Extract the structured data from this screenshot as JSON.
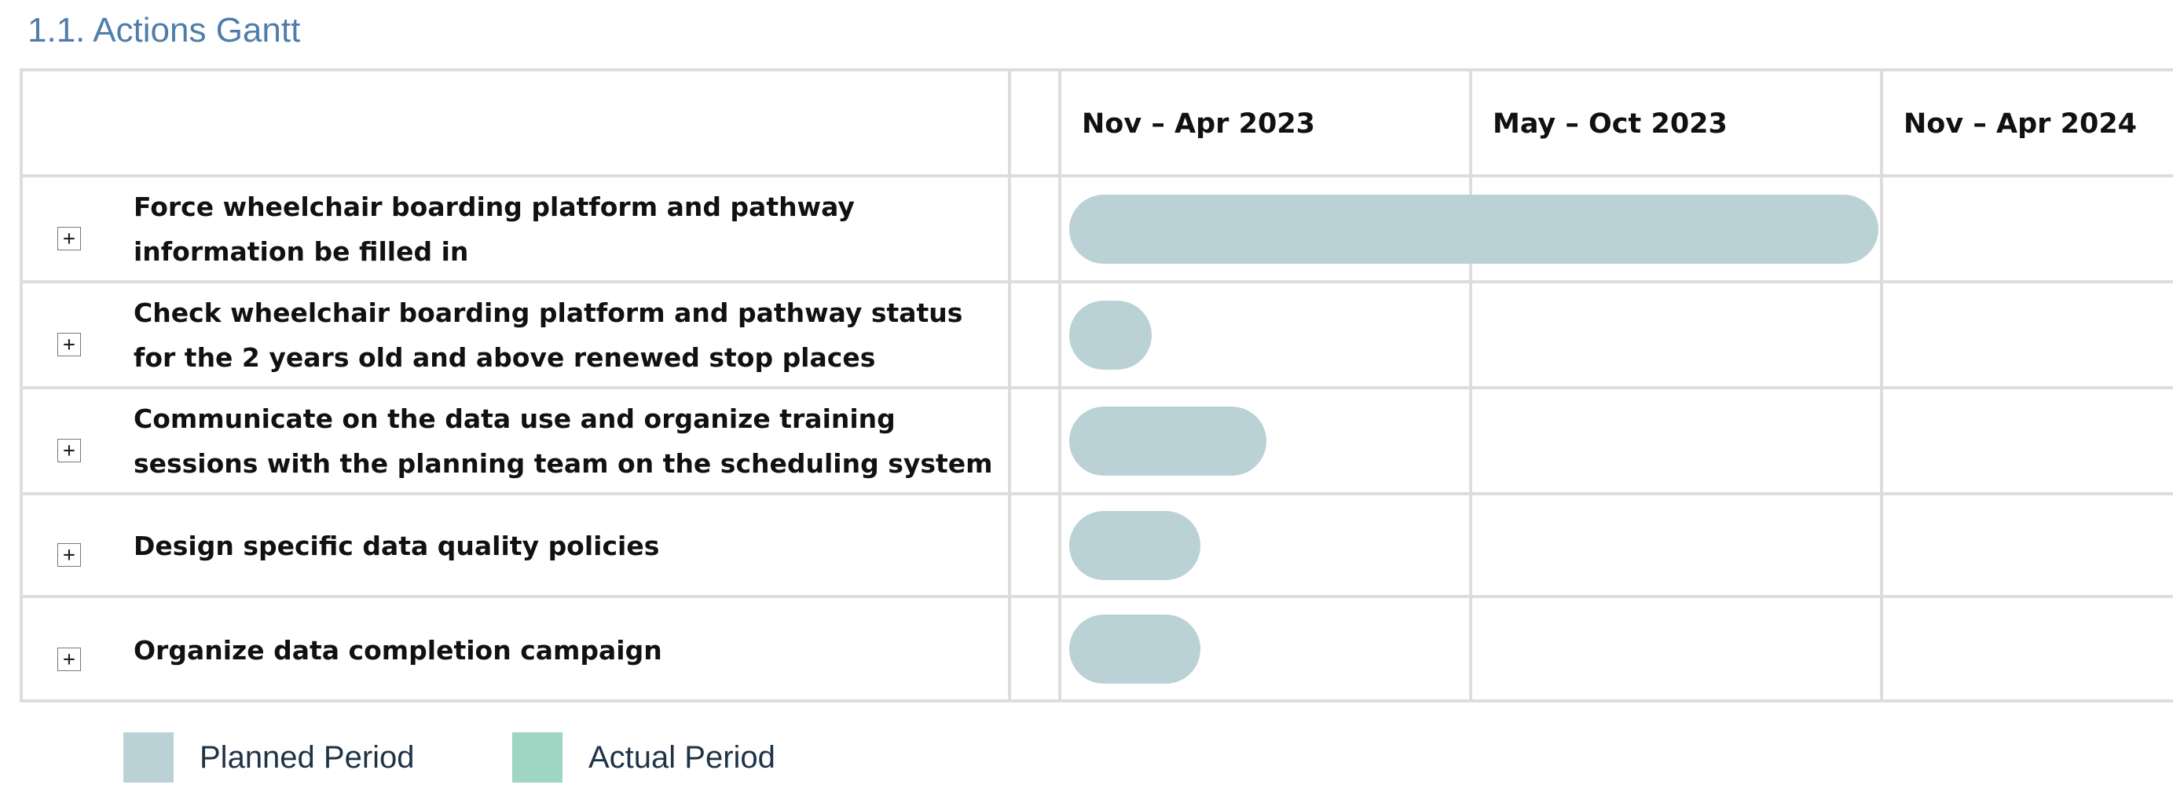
{
  "section_title": "1.1. Actions Gantt",
  "chart_data": {
    "type": "gantt",
    "periods": [
      "Nov – Apr 2023",
      "May – Oct 2023",
      "Nov – Apr 2024"
    ],
    "tasks": [
      {
        "name": "Force wheelchair boarding platform and pathway information be filled in",
        "planned": [
          0.0,
          1.97
        ]
      },
      {
        "name": "Check wheelchair boarding platform and pathway status for the 2 years old and above renewed stop places",
        "planned": [
          0.0,
          0.2
        ]
      },
      {
        "name": "Communicate on the data use and organize training sessions with the planning team on the scheduling system",
        "planned": [
          0.0,
          0.48
        ]
      },
      {
        "name": "Design specific data quality policies",
        "planned": [
          0.0,
          0.32
        ]
      },
      {
        "name": "Organize data completion campaign",
        "planned": [
          0.0,
          0.32
        ]
      }
    ],
    "legend": [
      {
        "label": "Planned Period",
        "color": "#bad1d6"
      },
      {
        "label": "Actual Period",
        "color": "#9ed6c3"
      }
    ],
    "planned_color": "#bad1d6"
  }
}
